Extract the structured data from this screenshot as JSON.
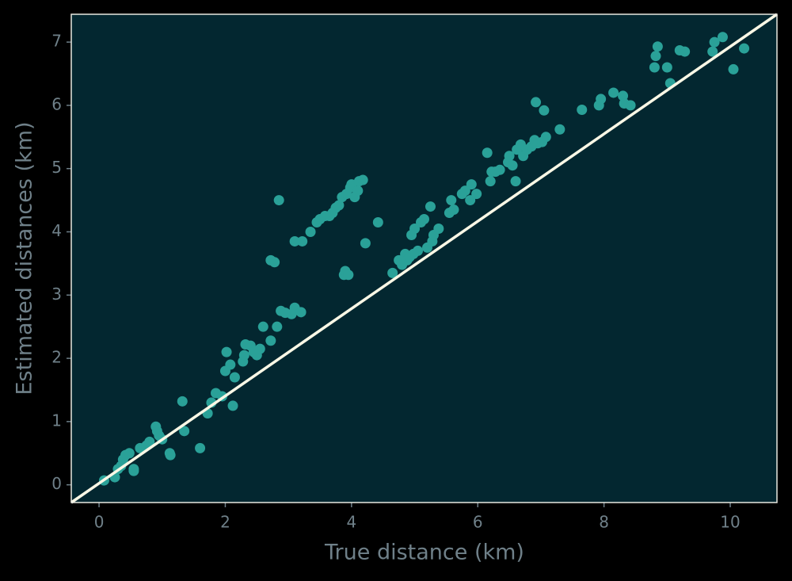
{
  "chart_data": {
    "type": "scatter",
    "xlabel": "True distance (km)",
    "ylabel": "Estimated distances (km)",
    "xlim": [
      -0.44,
      10.74
    ],
    "ylim": [
      -0.28,
      7.44
    ],
    "xticks": [
      0,
      2,
      4,
      6,
      8,
      10
    ],
    "yticks": [
      0,
      1,
      2,
      3,
      4,
      5,
      6,
      7
    ],
    "color": "#2aa198",
    "line_color": "#fbf8e6",
    "background": "#032730",
    "grid": false,
    "x": [
      0.08,
      0.25,
      0.3,
      0.38,
      0.42,
      0.48,
      0.35,
      0.55,
      0.55,
      0.65,
      0.75,
      0.8,
      0.9,
      0.92,
      0.95,
      1.0,
      1.12,
      1.13,
      1.32,
      1.35,
      1.6,
      1.72,
      1.78,
      1.85,
      1.95,
      2.0,
      2.02,
      2.08,
      2.12,
      2.15,
      2.28,
      2.3,
      2.32,
      2.4,
      2.45,
      2.5,
      2.55,
      2.6,
      2.72,
      2.72,
      2.78,
      2.82,
      2.85,
      2.88,
      2.95,
      3.05,
      3.1,
      3.1,
      3.2,
      3.22,
      3.35,
      3.45,
      3.5,
      3.58,
      3.65,
      3.7,
      3.75,
      3.8,
      3.85,
      3.88,
      3.9,
      3.92,
      3.95,
      3.98,
      4.0,
      4.05,
      4.1,
      4.12,
      4.18,
      4.22,
      4.42,
      4.65,
      4.75,
      4.8,
      4.85,
      4.88,
      4.92,
      4.95,
      4.98,
      5.0,
      5.05,
      5.1,
      5.15,
      5.2,
      5.25,
      5.28,
      5.3,
      5.38,
      5.55,
      5.58,
      5.62,
      5.75,
      5.8,
      5.88,
      5.9,
      5.98,
      6.15,
      6.2,
      6.22,
      6.28,
      6.35,
      6.48,
      6.5,
      6.55,
      6.6,
      6.62,
      6.68,
      6.72,
      6.78,
      6.85,
      6.9,
      6.92,
      6.95,
      7.02,
      7.08,
      7.05,
      7.3,
      7.65,
      7.92,
      7.95,
      8.15,
      8.3,
      8.32,
      8.42,
      8.8,
      8.82,
      8.85,
      9.0,
      9.05,
      9.2,
      9.28,
      9.72,
      9.75,
      9.88,
      10.05,
      10.22
    ],
    "values": [
      0.07,
      0.12,
      0.25,
      0.4,
      0.47,
      0.5,
      0.3,
      0.25,
      0.22,
      0.58,
      0.62,
      0.68,
      0.92,
      0.85,
      0.78,
      0.72,
      0.5,
      0.47,
      1.32,
      0.85,
      0.58,
      1.13,
      1.3,
      1.45,
      1.4,
      1.8,
      2.1,
      1.9,
      1.25,
      1.7,
      1.95,
      2.05,
      2.22,
      2.2,
      2.1,
      2.05,
      2.15,
      2.5,
      2.28,
      3.55,
      3.52,
      2.5,
      4.5,
      2.75,
      2.72,
      2.7,
      2.8,
      3.85,
      2.73,
      3.85,
      4.0,
      4.15,
      4.2,
      4.25,
      4.25,
      4.3,
      4.38,
      4.42,
      4.55,
      3.32,
      3.38,
      4.6,
      3.32,
      4.7,
      4.75,
      4.55,
      4.65,
      4.8,
      4.82,
      3.82,
      4.15,
      3.35,
      3.55,
      3.48,
      3.65,
      3.55,
      3.6,
      3.95,
      3.65,
      4.05,
      3.7,
      4.15,
      4.2,
      3.75,
      4.4,
      3.85,
      3.95,
      4.05,
      4.3,
      4.5,
      4.35,
      4.6,
      4.65,
      4.5,
      4.75,
      4.6,
      5.25,
      4.8,
      4.95,
      4.95,
      4.98,
      5.1,
      5.2,
      5.05,
      4.8,
      5.3,
      5.38,
      5.2,
      5.3,
      5.35,
      5.45,
      6.05,
      5.4,
      5.42,
      5.5,
      5.92,
      5.62,
      5.93,
      6.0,
      6.1,
      6.2,
      6.15,
      6.03,
      6.0,
      6.6,
      6.78,
      6.93,
      6.6,
      6.35,
      6.87,
      6.85,
      6.85,
      7.0,
      7.08,
      6.57,
      6.9
    ]
  }
}
